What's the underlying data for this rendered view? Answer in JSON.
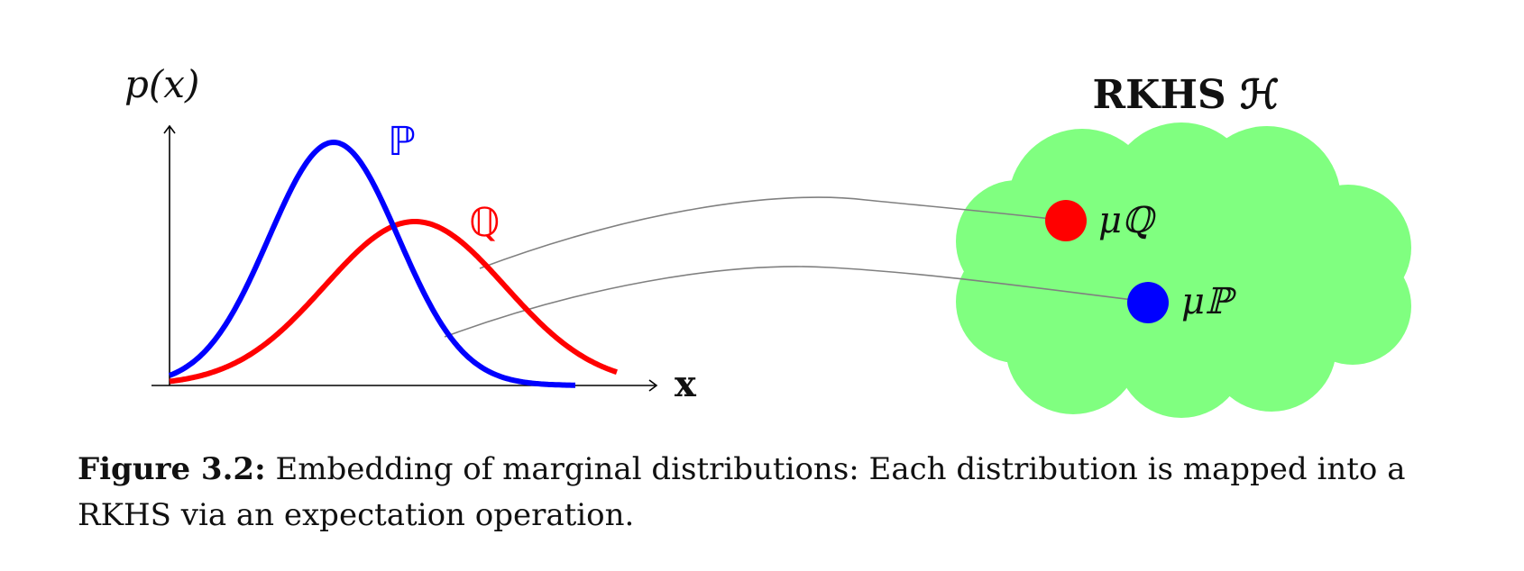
{
  "colors": {
    "p_color": "#0000ff",
    "q_color": "#ff0000",
    "rkhs_fill": "#80ff80",
    "connector": "#808080",
    "axis": "#000000"
  },
  "plot": {
    "y_axis_label": "p(x)",
    "x_axis_label": "x",
    "p_label": "ℙ",
    "q_label": "ℚ"
  },
  "rkhs": {
    "title": "RKHS ℋ",
    "mu_q_label": "μℚ",
    "mu_p_label": "μℙ"
  },
  "caption": {
    "label": "Figure 3.2:",
    "text": " Embedding of marginal distributions: Each distribution is mapped into a RKHS via an expectation operation."
  }
}
